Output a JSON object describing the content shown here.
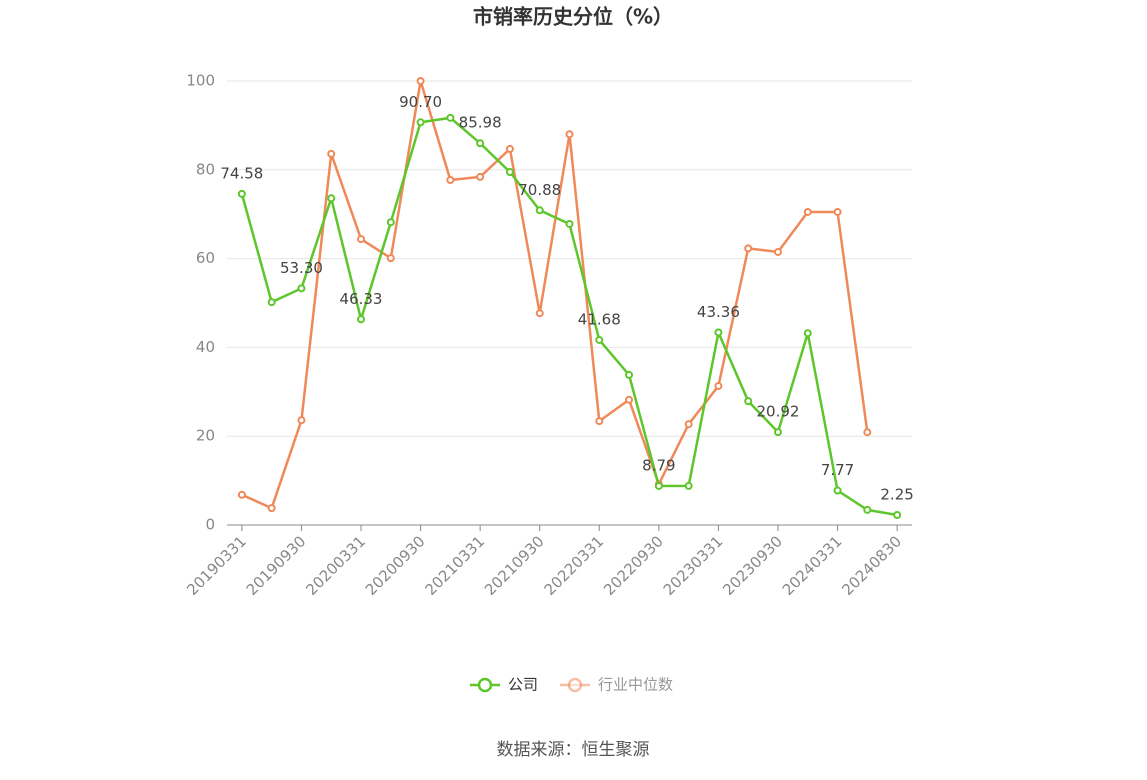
{
  "chart_data": {
    "type": "line",
    "title": "市销率历史分位（%）",
    "categories": [
      "20190331",
      null,
      "20190930",
      null,
      "20200331",
      null,
      "20200930",
      null,
      "20210331",
      null,
      "20210930",
      null,
      "20220331",
      null,
      "20220930",
      null,
      "20230331",
      null,
      "20230930",
      null,
      "20240331",
      null,
      "20240830"
    ],
    "series": [
      {
        "name": "公司",
        "color": "#5dc62a",
        "values": [
          74.58,
          50.2,
          53.3,
          73.6,
          46.33,
          68.2,
          90.7,
          91.7,
          85.98,
          79.5,
          70.88,
          67.8,
          41.68,
          33.8,
          8.79,
          8.8,
          43.36,
          27.9,
          20.92,
          43.2,
          7.77,
          3.4,
          2.25
        ],
        "value_labels": [
          "74.58",
          null,
          "53.30",
          null,
          "46.33",
          null,
          "90.70",
          null,
          "85.98",
          null,
          "70.88",
          null,
          "41.68",
          null,
          "8.79",
          null,
          "43.36",
          null,
          "20.92",
          null,
          "7.77",
          null,
          "2.25"
        ]
      },
      {
        "name": "行业中位数",
        "color": "#f0895a",
        "values": [
          6.8,
          3.8,
          23.6,
          83.6,
          64.4,
          60.1,
          100,
          77.7,
          78.4,
          84.7,
          47.7,
          88,
          23.4,
          28.2,
          9.2,
          22.7,
          31.3,
          62.3,
          61.5,
          70.5,
          70.5,
          20.9,
          null
        ]
      }
    ],
    "ylim": [
      0,
      100
    ],
    "yticks": [
      0,
      20,
      40,
      60,
      80,
      100
    ],
    "grid": true,
    "source": "数据来源：恒生聚源"
  }
}
